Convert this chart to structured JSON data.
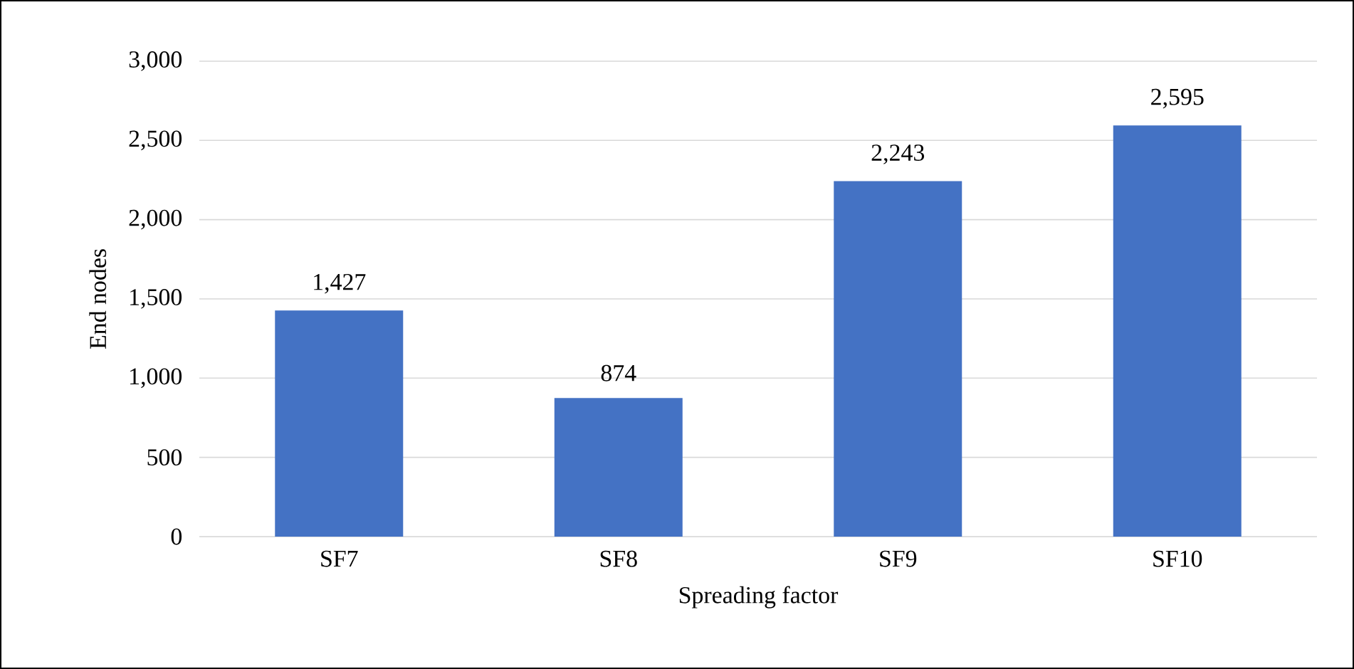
{
  "chart_data": {
    "type": "bar",
    "xlabel": "Spreading factor",
    "ylabel": "End nodes",
    "categories": [
      "SF7",
      "SF8",
      "SF9",
      "SF10"
    ],
    "values": [
      1427,
      874,
      2243,
      2595
    ],
    "value_labels": [
      "1,427",
      "874",
      "2,243",
      "2,595"
    ],
    "color": "#4472c4",
    "ylim": [
      0,
      3000
    ],
    "yticks": [
      {
        "value": 0,
        "label": "0"
      },
      {
        "value": 500,
        "label": "500"
      },
      {
        "value": 1000,
        "label": "1,000"
      },
      {
        "value": 1500,
        "label": "1,500"
      },
      {
        "value": 2000,
        "label": "2,000"
      },
      {
        "value": 2500,
        "label": "2,500"
      },
      {
        "value": 3000,
        "label": "3,000"
      }
    ],
    "grid": "y"
  }
}
